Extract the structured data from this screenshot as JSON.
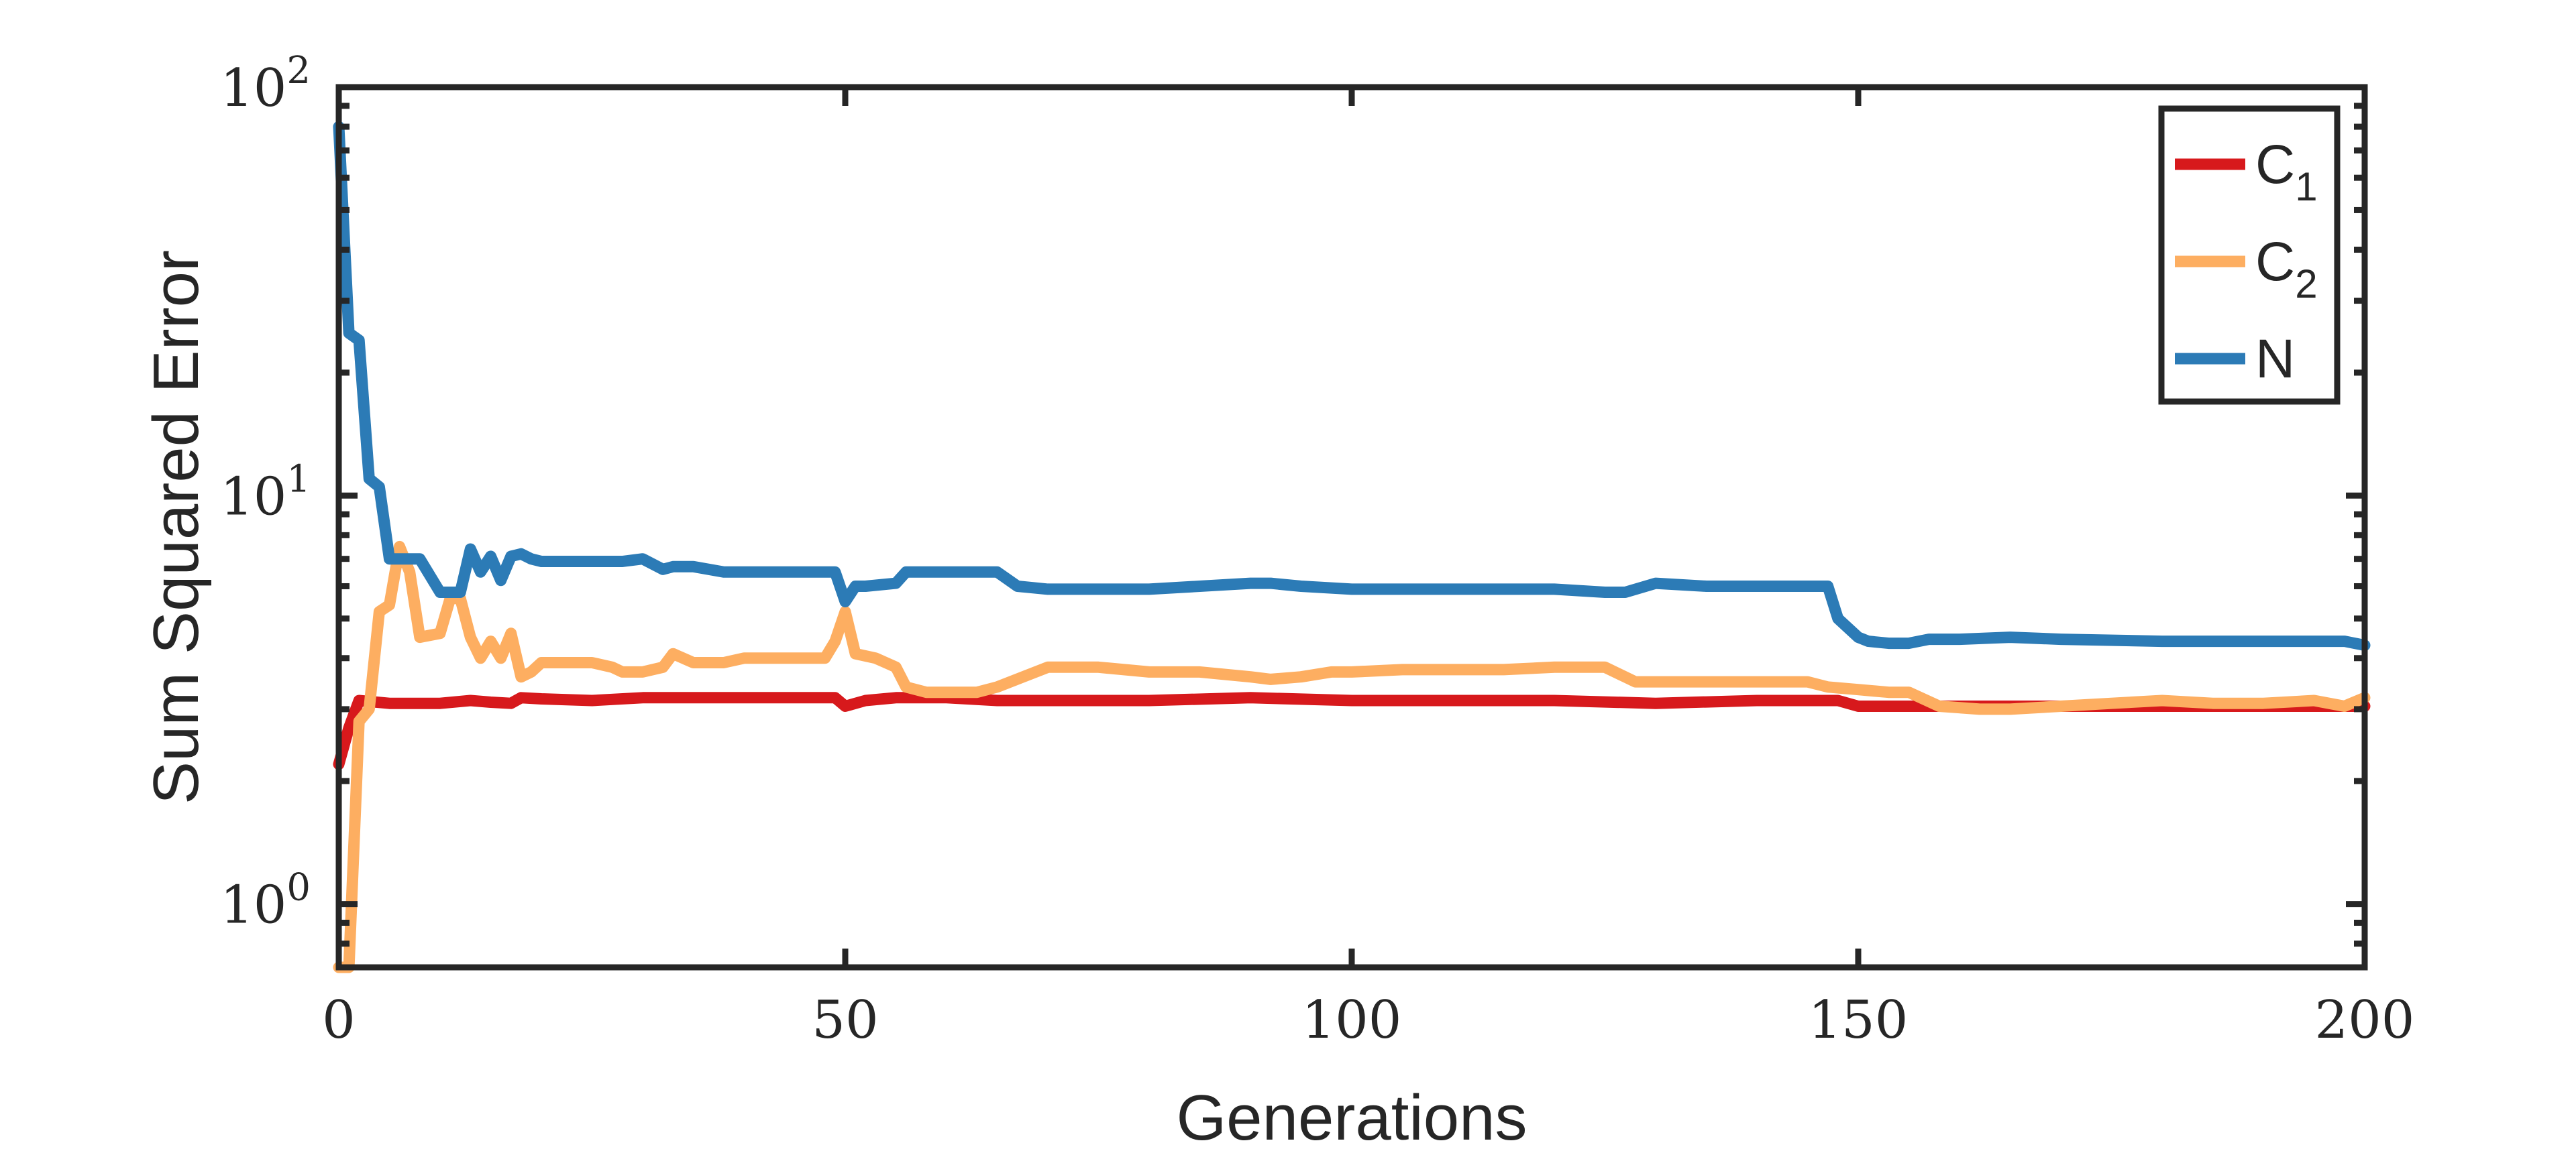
{
  "chart_data": {
    "type": "line",
    "title": "",
    "xlabel": "Generations",
    "ylabel": "Sum Squared Error",
    "xlim": [
      0,
      200
    ],
    "ylim": [
      0.7,
      100
    ],
    "yscale": "log",
    "xticks": [
      0,
      50,
      100,
      150,
      200
    ],
    "xtick_labels": [
      "0",
      "50",
      "100",
      "150",
      "200"
    ],
    "yticks": [
      1,
      10,
      100
    ],
    "ytick_labels": [
      {
        "base": "10",
        "exp": "0"
      },
      {
        "base": "10",
        "exp": "1"
      },
      {
        "base": "10",
        "exp": "2"
      }
    ],
    "grid": false,
    "legend_position": "top-right",
    "series": [
      {
        "name": "C",
        "name_sub": "1",
        "color": "#d7191c",
        "x": [
          0,
          1,
          2,
          5,
          10,
          13,
          15,
          17,
          18,
          20,
          25,
          30,
          35,
          40,
          45,
          49,
          50,
          52,
          55,
          60,
          65,
          70,
          80,
          90,
          100,
          110,
          120,
          130,
          140,
          148,
          150,
          155,
          160,
          170,
          180,
          190,
          200
        ],
        "values": [
          2.2,
          2.7,
          3.15,
          3.1,
          3.1,
          3.15,
          3.12,
          3.1,
          3.2,
          3.18,
          3.15,
          3.2,
          3.2,
          3.2,
          3.2,
          3.2,
          3.05,
          3.15,
          3.2,
          3.2,
          3.15,
          3.15,
          3.15,
          3.2,
          3.15,
          3.15,
          3.15,
          3.1,
          3.15,
          3.15,
          3.05,
          3.05,
          3.05,
          3.05,
          3.05,
          3.05,
          3.05
        ]
      },
      {
        "name": "C",
        "name_sub": "2",
        "color": "#fdae61",
        "x": [
          0,
          1,
          2,
          3,
          4,
          5,
          6,
          7,
          8,
          10,
          11,
          12,
          13,
          14,
          15,
          16,
          17,
          18,
          19,
          20,
          22,
          25,
          27,
          28,
          30,
          32,
          33,
          35,
          38,
          40,
          45,
          48,
          49,
          50,
          51,
          53,
          54,
          55,
          56,
          58,
          60,
          63,
          65,
          70,
          75,
          80,
          85,
          90,
          92,
          95,
          98,
          100,
          105,
          110,
          115,
          120,
          125,
          128,
          130,
          135,
          140,
          145,
          147,
          150,
          153,
          155,
          158,
          162,
          165,
          170,
          175,
          180,
          185,
          190,
          195,
          198,
          200
        ],
        "values": [
          0.7,
          0.7,
          2.8,
          3.0,
          5.2,
          5.4,
          7.5,
          6.5,
          4.5,
          4.6,
          5.6,
          5.6,
          4.5,
          4.0,
          4.4,
          4.0,
          4.6,
          3.6,
          3.7,
          3.9,
          3.9,
          3.9,
          3.8,
          3.7,
          3.7,
          3.8,
          4.1,
          3.9,
          3.9,
          4.0,
          4.0,
          4.0,
          4.4,
          5.2,
          4.1,
          4.0,
          3.9,
          3.8,
          3.4,
          3.3,
          3.3,
          3.3,
          3.4,
          3.8,
          3.8,
          3.7,
          3.7,
          3.6,
          3.55,
          3.6,
          3.7,
          3.7,
          3.75,
          3.75,
          3.75,
          3.8,
          3.8,
          3.5,
          3.5,
          3.5,
          3.5,
          3.5,
          3.4,
          3.35,
          3.3,
          3.3,
          3.05,
          3.0,
          3.0,
          3.05,
          3.1,
          3.15,
          3.1,
          3.1,
          3.15,
          3.05,
          3.2
        ]
      },
      {
        "name": "N",
        "name_sub": "",
        "color": "#2c7bb6",
        "x": [
          0,
          1,
          2,
          3,
          4,
          5,
          6,
          7,
          8,
          10,
          11,
          12,
          13,
          14,
          15,
          16,
          17,
          18,
          19,
          20,
          22,
          25,
          28,
          30,
          32,
          33,
          35,
          38,
          40,
          45,
          49,
          50,
          51,
          52,
          55,
          56,
          58,
          60,
          65,
          67,
          70,
          80,
          85,
          90,
          92,
          95,
          100,
          105,
          110,
          120,
          125,
          127,
          130,
          135,
          140,
          147,
          148,
          150,
          151,
          153,
          155,
          157,
          160,
          165,
          170,
          180,
          190,
          198,
          200
        ],
        "values": [
          80,
          25,
          24,
          11,
          10.5,
          7.0,
          7.0,
          7.0,
          7.0,
          5.8,
          5.8,
          5.8,
          7.4,
          6.5,
          7.1,
          6.2,
          7.1,
          7.2,
          7.0,
          6.9,
          6.9,
          6.9,
          6.9,
          7.0,
          6.6,
          6.7,
          6.7,
          6.5,
          6.5,
          6.5,
          6.5,
          5.5,
          6.0,
          6.0,
          6.1,
          6.5,
          6.5,
          6.5,
          6.5,
          6.0,
          5.9,
          5.9,
          6.0,
          6.1,
          6.1,
          6.0,
          5.9,
          5.9,
          5.9,
          5.9,
          5.8,
          5.8,
          6.1,
          6.0,
          6.0,
          6.0,
          5.0,
          4.5,
          4.4,
          4.35,
          4.35,
          4.45,
          4.45,
          4.5,
          4.45,
          4.4,
          4.4,
          4.4,
          4.3
        ]
      }
    ]
  }
}
